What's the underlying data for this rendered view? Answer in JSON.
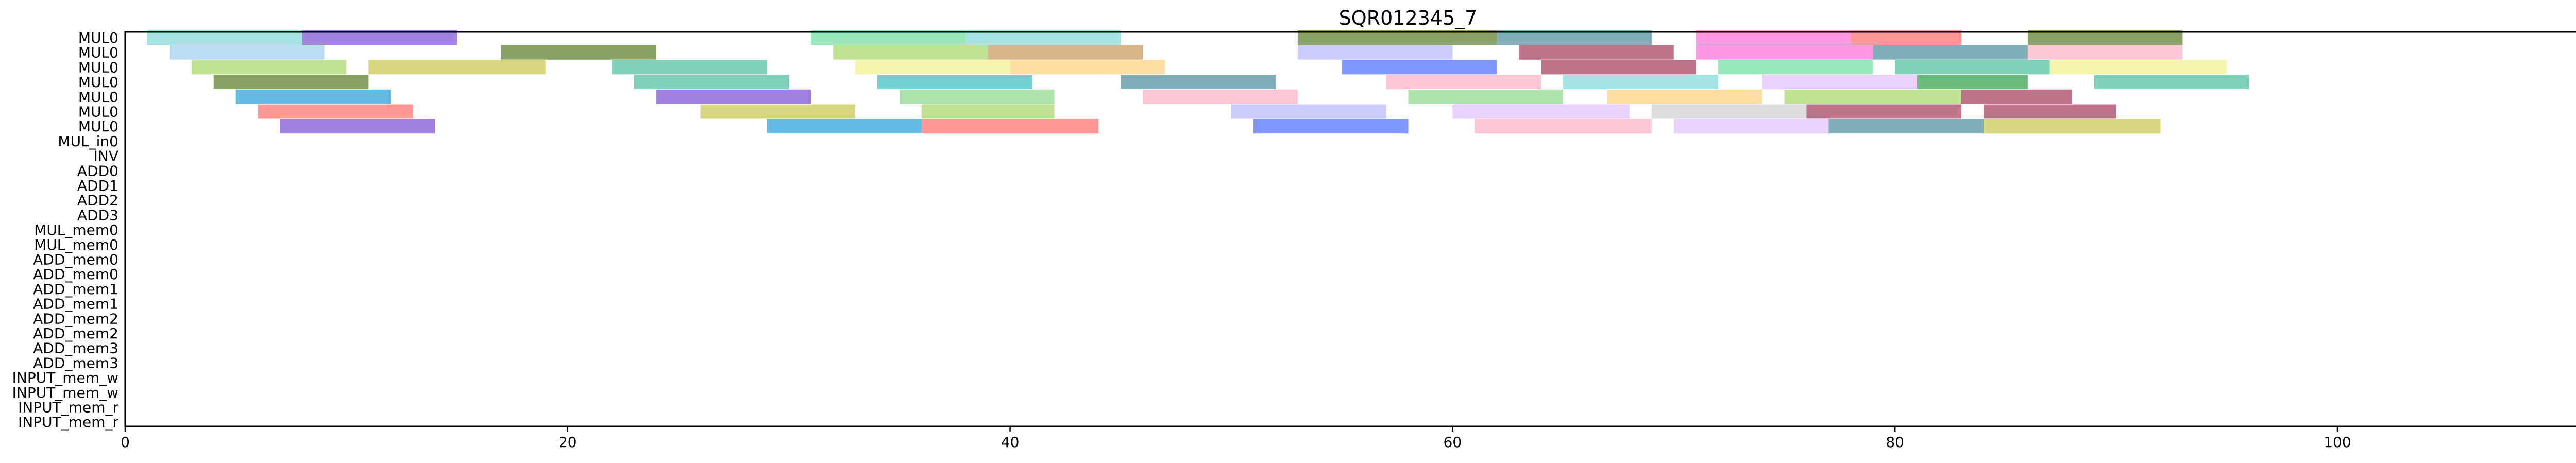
{
  "chart_data": {
    "type": "gantt",
    "title": "SQR012345_7",
    "xlabel": "",
    "ylabel": "",
    "xlim": [
      0,
      116
    ],
    "xticks": [
      0,
      20,
      40,
      60,
      80,
      100
    ],
    "grid": false,
    "lanes": [
      "MUL0",
      "MUL0",
      "MUL0",
      "MUL0",
      "MUL0",
      "MUL0",
      "MUL0",
      "MUL_in0",
      "INV",
      "ADD0",
      "ADD1",
      "ADD2",
      "ADD3",
      "MUL_mem0",
      "MUL_mem0",
      "ADD_mem0",
      "ADD_mem0",
      "ADD_mem1",
      "ADD_mem1",
      "ADD_mem2",
      "ADD_mem2",
      "ADD_mem3",
      "ADD_mem3",
      "INPUT_mem_w",
      "INPUT_mem_w",
      "INPUT_mem_r",
      "INPUT_mem_r"
    ],
    "palette": [
      "#7fd8d8",
      "#7b4fd8",
      "#5a7f2a",
      "#9fd0f0",
      "#a8d86a",
      "#c8955a",
      "#4fbf9f",
      "#36a04a",
      "#ff6fd8",
      "#2a9fd8",
      "#ff6f6f",
      "#c8c84f",
      "#4f6fff",
      "#a83f5f",
      "#ffb0c8",
      "#8fd88f",
      "#4f8f9f",
      "#d0d0d0",
      "#3fbfbf",
      "#e0c0ff",
      "#ffd080",
      "#f0f08f",
      "#6fe0a0",
      "#c05fcf",
      "#2f5f4f",
      "#ff4f4f",
      "#88e0ff",
      "#b8b8ff"
    ],
    "bars": [
      {
        "lane": 0,
        "start": 1,
        "end": 8,
        "c": 0
      },
      {
        "lane": 0,
        "start": 8,
        "end": 15,
        "c": 1
      },
      {
        "lane": 0,
        "start": 31,
        "end": 38,
        "c": 22
      },
      {
        "lane": 0,
        "start": 38,
        "end": 45,
        "c": 0
      },
      {
        "lane": 0,
        "start": 53,
        "end": 62,
        "c": 2
      },
      {
        "lane": 0,
        "start": 62,
        "end": 69,
        "c": 16
      },
      {
        "lane": 0,
        "start": 71,
        "end": 78,
        "c": 8
      },
      {
        "lane": 0,
        "start": 78,
        "end": 83,
        "c": 10
      },
      {
        "lane": 0,
        "start": 86,
        "end": 93,
        "c": 2
      },
      {
        "lane": 1,
        "start": 2,
        "end": 9,
        "c": 3
      },
      {
        "lane": 1,
        "start": 17,
        "end": 24,
        "c": 2
      },
      {
        "lane": 1,
        "start": 32,
        "end": 39,
        "c": 4
      },
      {
        "lane": 1,
        "start": 39,
        "end": 46,
        "c": 5
      },
      {
        "lane": 1,
        "start": 53,
        "end": 60,
        "c": 27
      },
      {
        "lane": 1,
        "start": 63,
        "end": 70,
        "c": 13
      },
      {
        "lane": 1,
        "start": 71,
        "end": 79,
        "c": 8
      },
      {
        "lane": 1,
        "start": 79,
        "end": 86,
        "c": 16
      },
      {
        "lane": 1,
        "start": 86,
        "end": 93,
        "c": 14
      },
      {
        "lane": 2,
        "start": 3,
        "end": 10,
        "c": 4
      },
      {
        "lane": 2,
        "start": 11,
        "end": 19,
        "c": 11
      },
      {
        "lane": 2,
        "start": 22,
        "end": 29,
        "c": 6
      },
      {
        "lane": 2,
        "start": 33,
        "end": 40,
        "c": 21
      },
      {
        "lane": 2,
        "start": 40,
        "end": 47,
        "c": 20
      },
      {
        "lane": 2,
        "start": 55,
        "end": 62,
        "c": 12
      },
      {
        "lane": 2,
        "start": 64,
        "end": 71,
        "c": 13
      },
      {
        "lane": 2,
        "start": 72,
        "end": 79,
        "c": 22
      },
      {
        "lane": 2,
        "start": 80,
        "end": 87,
        "c": 6
      },
      {
        "lane": 2,
        "start": 87,
        "end": 95,
        "c": 21
      },
      {
        "lane": 3,
        "start": 4,
        "end": 11,
        "c": 2
      },
      {
        "lane": 3,
        "start": 23,
        "end": 30,
        "c": 6
      },
      {
        "lane": 3,
        "start": 34,
        "end": 41,
        "c": 18
      },
      {
        "lane": 3,
        "start": 45,
        "end": 52,
        "c": 16
      },
      {
        "lane": 3,
        "start": 57,
        "end": 64,
        "c": 14
      },
      {
        "lane": 3,
        "start": 65,
        "end": 72,
        "c": 0
      },
      {
        "lane": 3,
        "start": 74,
        "end": 81,
        "c": 19
      },
      {
        "lane": 3,
        "start": 81,
        "end": 86,
        "c": 7
      },
      {
        "lane": 3,
        "start": 89,
        "end": 96,
        "c": 6
      },
      {
        "lane": 4,
        "start": 5,
        "end": 12,
        "c": 9
      },
      {
        "lane": 4,
        "start": 24,
        "end": 31,
        "c": 1
      },
      {
        "lane": 4,
        "start": 35,
        "end": 42,
        "c": 15
      },
      {
        "lane": 4,
        "start": 46,
        "end": 53,
        "c": 14
      },
      {
        "lane": 4,
        "start": 58,
        "end": 65,
        "c": 15
      },
      {
        "lane": 4,
        "start": 67,
        "end": 74,
        "c": 20
      },
      {
        "lane": 4,
        "start": 75,
        "end": 83,
        "c": 4
      },
      {
        "lane": 4,
        "start": 83,
        "end": 88,
        "c": 13
      },
      {
        "lane": 5,
        "start": 6,
        "end": 13,
        "c": 10
      },
      {
        "lane": 5,
        "start": 26,
        "end": 33,
        "c": 11
      },
      {
        "lane": 5,
        "start": 36,
        "end": 42,
        "c": 4
      },
      {
        "lane": 5,
        "start": 50,
        "end": 57,
        "c": 27
      },
      {
        "lane": 5,
        "start": 60,
        "end": 68,
        "c": 19
      },
      {
        "lane": 5,
        "start": 69,
        "end": 76,
        "c": 17
      },
      {
        "lane": 5,
        "start": 76,
        "end": 83,
        "c": 13
      },
      {
        "lane": 5,
        "start": 84,
        "end": 90,
        "c": 13
      },
      {
        "lane": 6,
        "start": 7,
        "end": 14,
        "c": 1
      },
      {
        "lane": 6,
        "start": 29,
        "end": 36,
        "c": 9
      },
      {
        "lane": 6,
        "start": 36,
        "end": 44,
        "c": 10
      },
      {
        "lane": 6,
        "start": 51,
        "end": 58,
        "c": 12
      },
      {
        "lane": 6,
        "start": 61,
        "end": 69,
        "c": 14
      },
      {
        "lane": 6,
        "start": 70,
        "end": 77,
        "c": 19
      },
      {
        "lane": 6,
        "start": 77,
        "end": 84,
        "c": 16
      },
      {
        "lane": 6,
        "start": 84,
        "end": 92,
        "c": 11
      }
    ]
  }
}
